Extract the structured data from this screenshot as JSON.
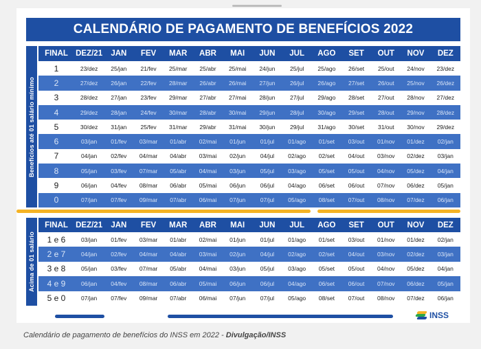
{
  "title": "CALENDÁRIO DE PAGAMENTO DE BENEFÍCIOS 2022",
  "section1": {
    "label": "Benefícios até 01 salário mínimo",
    "headers": [
      "FINAL",
      "DEZ/21",
      "JAN",
      "FEV",
      "MAR",
      "ABR",
      "MAI",
      "JUN",
      "JUL",
      "AGO",
      "SET",
      "OUT",
      "NOV",
      "DEZ"
    ],
    "rows": [
      [
        "1",
        "23/dez",
        "25/jan",
        "21/fev",
        "25/mar",
        "25/abr",
        "25/mai",
        "24/jun",
        "25/jul",
        "25/ago",
        "26/set",
        "25/out",
        "24/nov",
        "23/dez"
      ],
      [
        "2",
        "27/dez",
        "26/jan",
        "22/fev",
        "28/mar",
        "26/abr",
        "26/mai",
        "27/jun",
        "26/jul",
        "26/ago",
        "27/set",
        "26/out",
        "25/nov",
        "26/dez"
      ],
      [
        "3",
        "28/dez",
        "27/jan",
        "23/fev",
        "29/mar",
        "27/abr",
        "27/mai",
        "28/jun",
        "27/jul",
        "29/ago",
        "28/set",
        "27/out",
        "28/nov",
        "27/dez"
      ],
      [
        "4",
        "29/dez",
        "28/jan",
        "24/fev",
        "30/mar",
        "28/abr",
        "30/mai",
        "29/jun",
        "28/jul",
        "30/ago",
        "29/set",
        "28/out",
        "29/nov",
        "28/dez"
      ],
      [
        "5",
        "30/dez",
        "31/jan",
        "25/fev",
        "31/mar",
        "29/abr",
        "31/mai",
        "30/jun",
        "29/jul",
        "31/ago",
        "30/set",
        "31/out",
        "30/nov",
        "29/dez"
      ],
      [
        "6",
        "03/jan",
        "01/fev",
        "03/mar",
        "01/abr",
        "02/mai",
        "01/jun",
        "01/jul",
        "01/ago",
        "01/set",
        "03/out",
        "01/nov",
        "01/dez",
        "02/jan"
      ],
      [
        "7",
        "04/jan",
        "02/fev",
        "04/mar",
        "04/abr",
        "03/mai",
        "02/jun",
        "04/jul",
        "02/ago",
        "02/set",
        "04/out",
        "03/nov",
        "02/dez",
        "03/jan"
      ],
      [
        "8",
        "05/jan",
        "03/fev",
        "07/mar",
        "05/abr",
        "04/mai",
        "03/jun",
        "05/jul",
        "03/ago",
        "05/set",
        "05/out",
        "04/nov",
        "05/dez",
        "04/jan"
      ],
      [
        "9",
        "06/jan",
        "04/fev",
        "08/mar",
        "06/abr",
        "05/mai",
        "06/jun",
        "06/jul",
        "04/ago",
        "06/set",
        "06/out",
        "07/nov",
        "06/dez",
        "05/jan"
      ],
      [
        "0",
        "07/jan",
        "07/fev",
        "09/mar",
        "07/abr",
        "06/mai",
        "07/jun",
        "07/jul",
        "05/ago",
        "08/set",
        "07/out",
        "08/nov",
        "07/dez",
        "06/jan"
      ]
    ]
  },
  "section2": {
    "label": "Acima de 01 salário",
    "headers": [
      "FINAL",
      "DEZ/21",
      "JAN",
      "FEV",
      "MAR",
      "ABR",
      "MAI",
      "JUN",
      "JUL",
      "AGO",
      "SET",
      "OUT",
      "NOV",
      "DEZ"
    ],
    "rows": [
      [
        "1 e 6",
        "03/jan",
        "01/fev",
        "03/mar",
        "01/abr",
        "02/mai",
        "01/jun",
        "01/jul",
        "01/ago",
        "01/set",
        "03/out",
        "01/nov",
        "01/dez",
        "02/jan"
      ],
      [
        "2 e 7",
        "04/jan",
        "02/fev",
        "04/mar",
        "04/abr",
        "03/mai",
        "02/jun",
        "04/jul",
        "02/ago",
        "02/set",
        "04/out",
        "03/nov",
        "02/dez",
        "03/jan"
      ],
      [
        "3 e 8",
        "05/jan",
        "03/fev",
        "07/mar",
        "05/abr",
        "04/mai",
        "03/jun",
        "05/jul",
        "03/ago",
        "05/set",
        "05/out",
        "04/nov",
        "05/dez",
        "04/jan"
      ],
      [
        "4 e 9",
        "06/jan",
        "04/fev",
        "08/mar",
        "06/abr",
        "05/mai",
        "06/jun",
        "06/jul",
        "04/ago",
        "06/set",
        "06/out",
        "07/nov",
        "06/dez",
        "05/jan"
      ],
      [
        "5 e 0",
        "07/jan",
        "07/fev",
        "09/mar",
        "07/abr",
        "06/mai",
        "07/jun",
        "07/jul",
        "05/ago",
        "08/set",
        "07/out",
        "08/nov",
        "07/dez",
        "06/jan"
      ]
    ]
  },
  "logo": "INSS",
  "caption": {
    "text": "Calendário de pagamento de benefícios do INSS em 2022 - ",
    "credit": "Divulgação/INSS"
  },
  "colors": {
    "primary": "#1e4fa3",
    "alt_row": "#3f71c4",
    "accent": "#f5b324"
  }
}
